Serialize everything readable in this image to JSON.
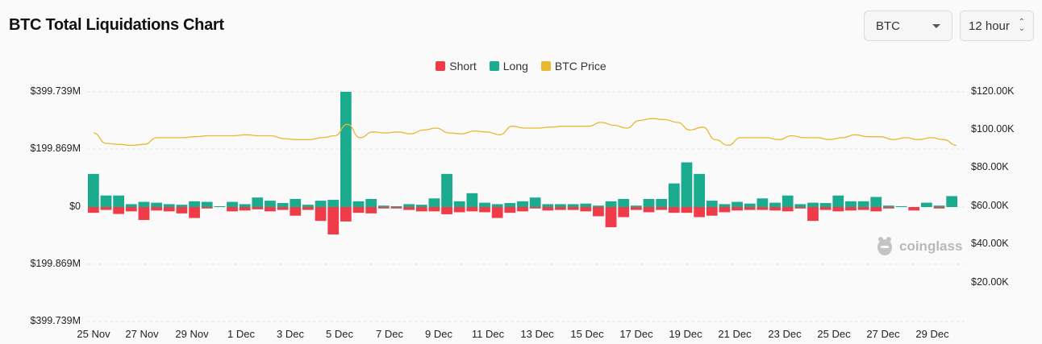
{
  "header": {
    "title": "BTC Total Liquidations Chart"
  },
  "controls": {
    "coin_value": "BTC",
    "interval_value": "12 hour"
  },
  "watermark": {
    "text": "coinglass"
  },
  "colors": {
    "short": "#f03c49",
    "long": "#1bab8e",
    "price": "#e9b831"
  },
  "chart_data": {
    "type": "bar",
    "legend": [
      "Short",
      "Long",
      "BTC Price"
    ],
    "legend_position": "top",
    "grid": true,
    "y_left_ticks": [
      "$399.739M",
      "$199.869M",
      "$0",
      "$199.869M",
      "$399.739M"
    ],
    "y_left_range": [
      -399.739,
      399.739
    ],
    "y_left_unit": "M",
    "y_right_ticks": [
      "$120.00K",
      "$100.00K",
      "$80.00K",
      "$60.00K",
      "$40.00K",
      "$20.00K"
    ],
    "y_right_range": [
      0,
      120
    ],
    "x_ticks": [
      "25 Nov",
      "27 Nov",
      "29 Nov",
      "1 Dec",
      "3 Dec",
      "5 Dec",
      "7 Dec",
      "9 Dec",
      "11 Dec",
      "13 Dec",
      "15 Dec",
      "17 Dec",
      "19 Dec",
      "21 Dec",
      "23 Dec",
      "25 Dec",
      "27 Dec",
      "29 Dec"
    ],
    "long": [
      115,
      40,
      40,
      10,
      18,
      15,
      10,
      8,
      20,
      18,
      3,
      18,
      10,
      33,
      22,
      14,
      28,
      8,
      22,
      25,
      400,
      20,
      28,
      5,
      3,
      10,
      8,
      30,
      115,
      20,
      48,
      15,
      10,
      14,
      20,
      33,
      10,
      10,
      10,
      12,
      5,
      20,
      28,
      5,
      28,
      28,
      82,
      155,
      115,
      22,
      10,
      18,
      12,
      30,
      15,
      40,
      10,
      15,
      14,
      40,
      20,
      20,
      35,
      5,
      3,
      0,
      15,
      5,
      38
    ],
    "short": [
      20,
      10,
      24,
      15,
      45,
      12,
      15,
      22,
      38,
      5,
      0,
      15,
      12,
      8,
      15,
      10,
      30,
      10,
      48,
      95,
      50,
      20,
      22,
      5,
      5,
      10,
      15,
      15,
      25,
      18,
      15,
      18,
      38,
      20,
      15,
      5,
      12,
      10,
      10,
      15,
      32,
      70,
      35,
      10,
      18,
      10,
      20,
      20,
      35,
      30,
      18,
      12,
      10,
      10,
      12,
      15,
      5,
      48,
      10,
      15,
      12,
      10,
      15,
      5,
      0,
      12,
      0,
      5,
      0
    ],
    "btc_price": [
      98.5,
      93,
      92.5,
      92,
      92.5,
      96,
      96,
      96,
      96.5,
      97,
      97,
      97,
      97.5,
      97,
      97,
      95.5,
      95,
      95,
      96,
      97,
      103,
      96,
      99,
      98.5,
      99,
      98,
      100,
      101,
      98.5,
      98,
      99.5,
      99,
      97.5,
      102,
      101,
      101,
      101.5,
      102,
      102,
      102,
      104,
      102.5,
      101,
      105,
      106,
      105.5,
      104,
      100,
      101.5,
      95,
      92,
      96,
      96,
      96,
      95,
      97,
      96,
      96,
      95,
      96,
      97.5,
      96.5,
      96.5,
      95,
      96,
      95,
      96,
      95,
      92
    ]
  }
}
